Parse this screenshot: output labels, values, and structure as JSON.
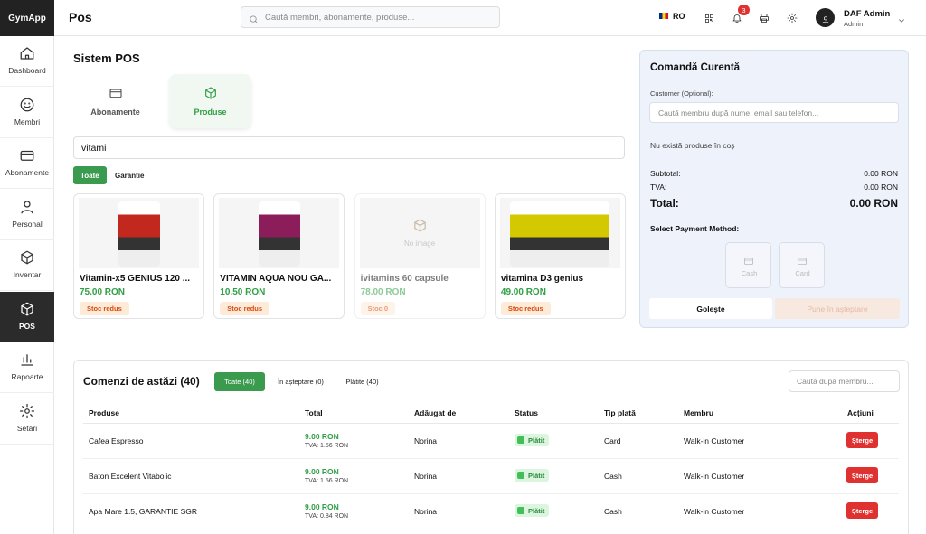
{
  "sidebar": {
    "brand": "GymApp",
    "items": [
      "Dashboard",
      "Membri",
      "Abonamente",
      "Personal",
      "Inventar",
      "POS",
      "Rapoarte",
      "Setări"
    ]
  },
  "topbar": {
    "title": "Pos",
    "search_placeholder": "Caută membri, abonamente, produse...",
    "language": "RO",
    "notifications": 3,
    "user_name": "DAF Admin",
    "user_role": "Admin"
  },
  "pos": {
    "title": "Sistem POS",
    "tabs": [
      "Abonamente",
      "Produse"
    ],
    "search_value": "vitami",
    "filters": [
      "Toate",
      "Garantie"
    ],
    "products": [
      {
        "name": "Vitamin-x5 GENIUS 120 ...",
        "price": "75.00 RON",
        "stock": "Stoc redus"
      },
      {
        "name": "VITAMIN AQUA NOU GA...",
        "price": "10.50 RON",
        "stock": "Stoc redus"
      },
      {
        "name": "ivitamins 60 capsule",
        "price": "78.00 RON",
        "stock": "Stoc 0",
        "image": "No image"
      },
      {
        "name": "vitamina D3 genius",
        "price": "49.00 RON",
        "stock": "Stoc redus"
      }
    ]
  },
  "order": {
    "title": "Comandă Curentă",
    "customer_label": "Customer (Optional):",
    "customer_placeholder": "Caută membru după nume, email sau telefon...",
    "empty": "Nu există produse în coș",
    "subtotal_label": "Subtotal:",
    "subtotal": "0.00 RON",
    "tva_label": "TVA:",
    "tva": "0.00 RON",
    "total_label": "Total:",
    "total": "0.00 RON",
    "payment_label": "Select Payment Method:",
    "payment_methods": [
      "Cash",
      "Card"
    ],
    "clear": "Golește",
    "hold": "Pune în așteptare"
  },
  "orders_today": {
    "title": "Comenzi de astăzi (40)",
    "filters": [
      "Toate (40)",
      "În așteptare (0)",
      "Plătite (40)"
    ],
    "search_placeholder": "Caută după membru...",
    "columns": [
      "Produse",
      "Total",
      "Adăugat de",
      "Status",
      "Tip plată",
      "Membru",
      "Acțiuni"
    ],
    "rows": [
      {
        "product": "Cafea Espresso",
        "total": "9.00 RON",
        "tva": "TVA: 1.56 RON",
        "added_by": "Norina",
        "status": "Plătit",
        "payment": "Card",
        "member": "Walk-in Customer",
        "action": "Șterge"
      },
      {
        "product": "Baton Excelent Vitabolic",
        "total": "9.00 RON",
        "tva": "TVA: 1.56 RON",
        "added_by": "Norina",
        "status": "Plătit",
        "payment": "Cash",
        "member": "Walk-in Customer",
        "action": "Șterge"
      },
      {
        "product": "Apa Mare 1.5, GARANTIE SGR",
        "total": "9.00 RON",
        "tva": "TVA: 0.84 RON",
        "added_by": "Norina",
        "status": "Plătit",
        "payment": "Cash",
        "member": "Walk-in Customer",
        "action": "Șterge"
      }
    ]
  }
}
